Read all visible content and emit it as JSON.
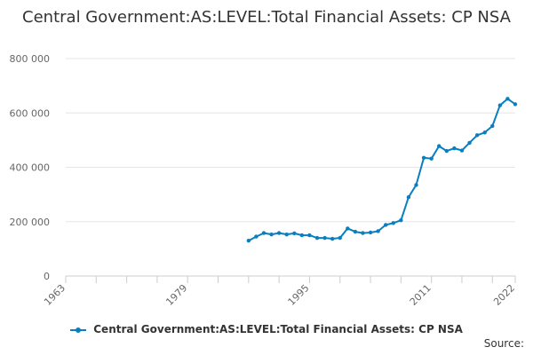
{
  "chart_data": {
    "type": "line",
    "title": "Central Government:AS:LEVEL:Total Financial Assets: CP NSA",
    "xlabel": "",
    "ylabel": "",
    "xlim": [
      1963,
      2022
    ],
    "ylim": [
      0,
      800000
    ],
    "x_ticks": [
      1963,
      1979,
      1995,
      2011,
      2022
    ],
    "y_ticks": [
      0,
      200000,
      400000,
      600000,
      800000
    ],
    "y_tick_labels": [
      "0",
      "200 000",
      "400 000",
      "600 000",
      "800 000"
    ],
    "grid": "horizontal",
    "legend_position": "bottom",
    "series": [
      {
        "name": "Central Government:AS:LEVEL:Total Financial Assets: CP NSA",
        "color": "#0a7fc0",
        "x": [
          1987,
          1988,
          1989,
          1990,
          1991,
          1992,
          1993,
          1994,
          1995,
          1996,
          1997,
          1998,
          1999,
          2000,
          2001,
          2002,
          2003,
          2004,
          2005,
          2006,
          2007,
          2008,
          2009,
          2010,
          2011,
          2012,
          2013,
          2014,
          2015,
          2016,
          2017,
          2018,
          2019,
          2020,
          2021,
          2022
        ],
        "values": [
          130000,
          145000,
          158000,
          153000,
          158000,
          153000,
          157000,
          150000,
          150000,
          140000,
          140000,
          137000,
          140000,
          175000,
          163000,
          158000,
          160000,
          165000,
          188000,
          195000,
          205000,
          290000,
          335000,
          435000,
          432000,
          478000,
          460000,
          470000,
          462000,
          490000,
          518000,
          528000,
          552000,
          628000,
          652000,
          632000
        ]
      }
    ]
  },
  "legend": {
    "label": "Central Government:AS:LEVEL:Total Financial Assets: CP NSA"
  },
  "source_label": "Source:"
}
